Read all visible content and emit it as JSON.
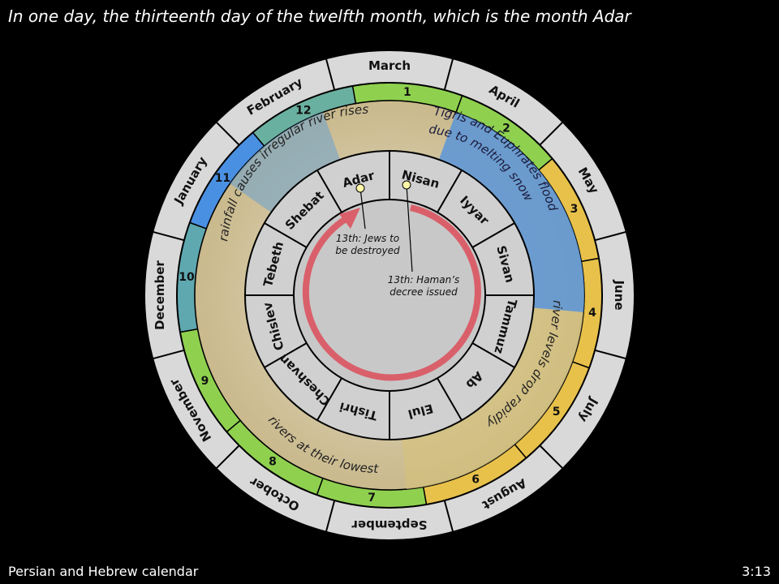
{
  "slide": {
    "title": "In one day, the thirteenth day of the twelfth month, which is the month Adar",
    "footer_left": "Persian and Hebrew calendar",
    "footer_right": "3:13"
  },
  "calendar": {
    "gregorian_months": [
      "March",
      "April",
      "May",
      "June",
      "July",
      "August",
      "September",
      "October",
      "November",
      "December",
      "January",
      "February"
    ],
    "persian_month_numbers": [
      "1",
      "2",
      "3",
      "4",
      "5",
      "6",
      "7",
      "8",
      "9",
      "10",
      "11",
      "12"
    ],
    "hebrew_months": [
      "Nisan",
      "Iyyar",
      "Sivan",
      "Tammuz",
      "Ab",
      "Elul",
      "Tishri",
      "Cheshvan",
      "Chislev",
      "Tebeth",
      "Shebat",
      "Adar"
    ],
    "season_notes": {
      "flood": [
        "Tigris and Euphrates flood",
        "due to melting snow"
      ],
      "drop": "river levels drop rapidly",
      "lowest": "rivers at their lowest",
      "rainfall": "rainfall causes irregular river rises"
    },
    "events": {
      "adar": [
        "13th: Jews to",
        "be destroyed"
      ],
      "nisan": [
        "13th: Haman’s",
        "decree issued"
      ]
    },
    "colors": {
      "outer_ring": "#d9d9d9",
      "green": "#8fd14f",
      "blue": "#4a90e2",
      "gold": "#e8c14a",
      "tan": "#d9ccaa",
      "hebrew_ring": "#d0d0d0",
      "center": "#c8c8c8",
      "arrow": "#d9606a",
      "marker": "#fff7a8"
    }
  }
}
